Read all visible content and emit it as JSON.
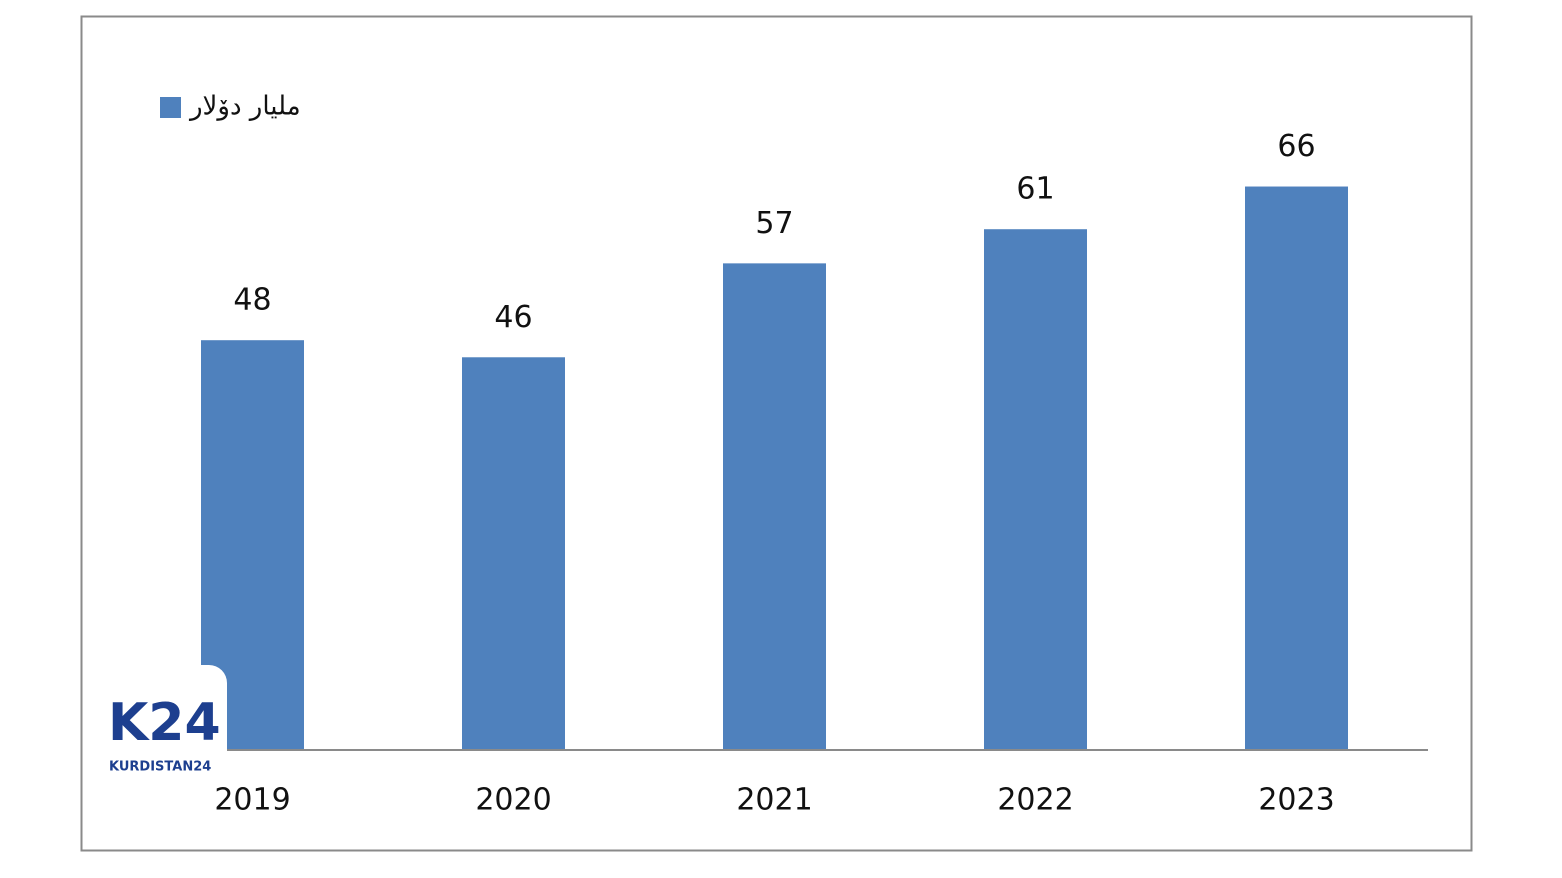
{
  "chart_data": {
    "type": "bar",
    "categories": [
      "2019",
      "2020",
      "2021",
      "2022",
      "2023"
    ],
    "series": [
      {
        "name": "ملیار دۆلار",
        "color": "#4f81bd",
        "values": [
          48,
          46,
          57,
          61,
          66
        ]
      }
    ],
    "ylim": [
      0,
      80
    ],
    "legend": "top-left",
    "data_labels": true
  },
  "logo": {
    "mark": "K24",
    "name": "KURDISTAN24"
  }
}
